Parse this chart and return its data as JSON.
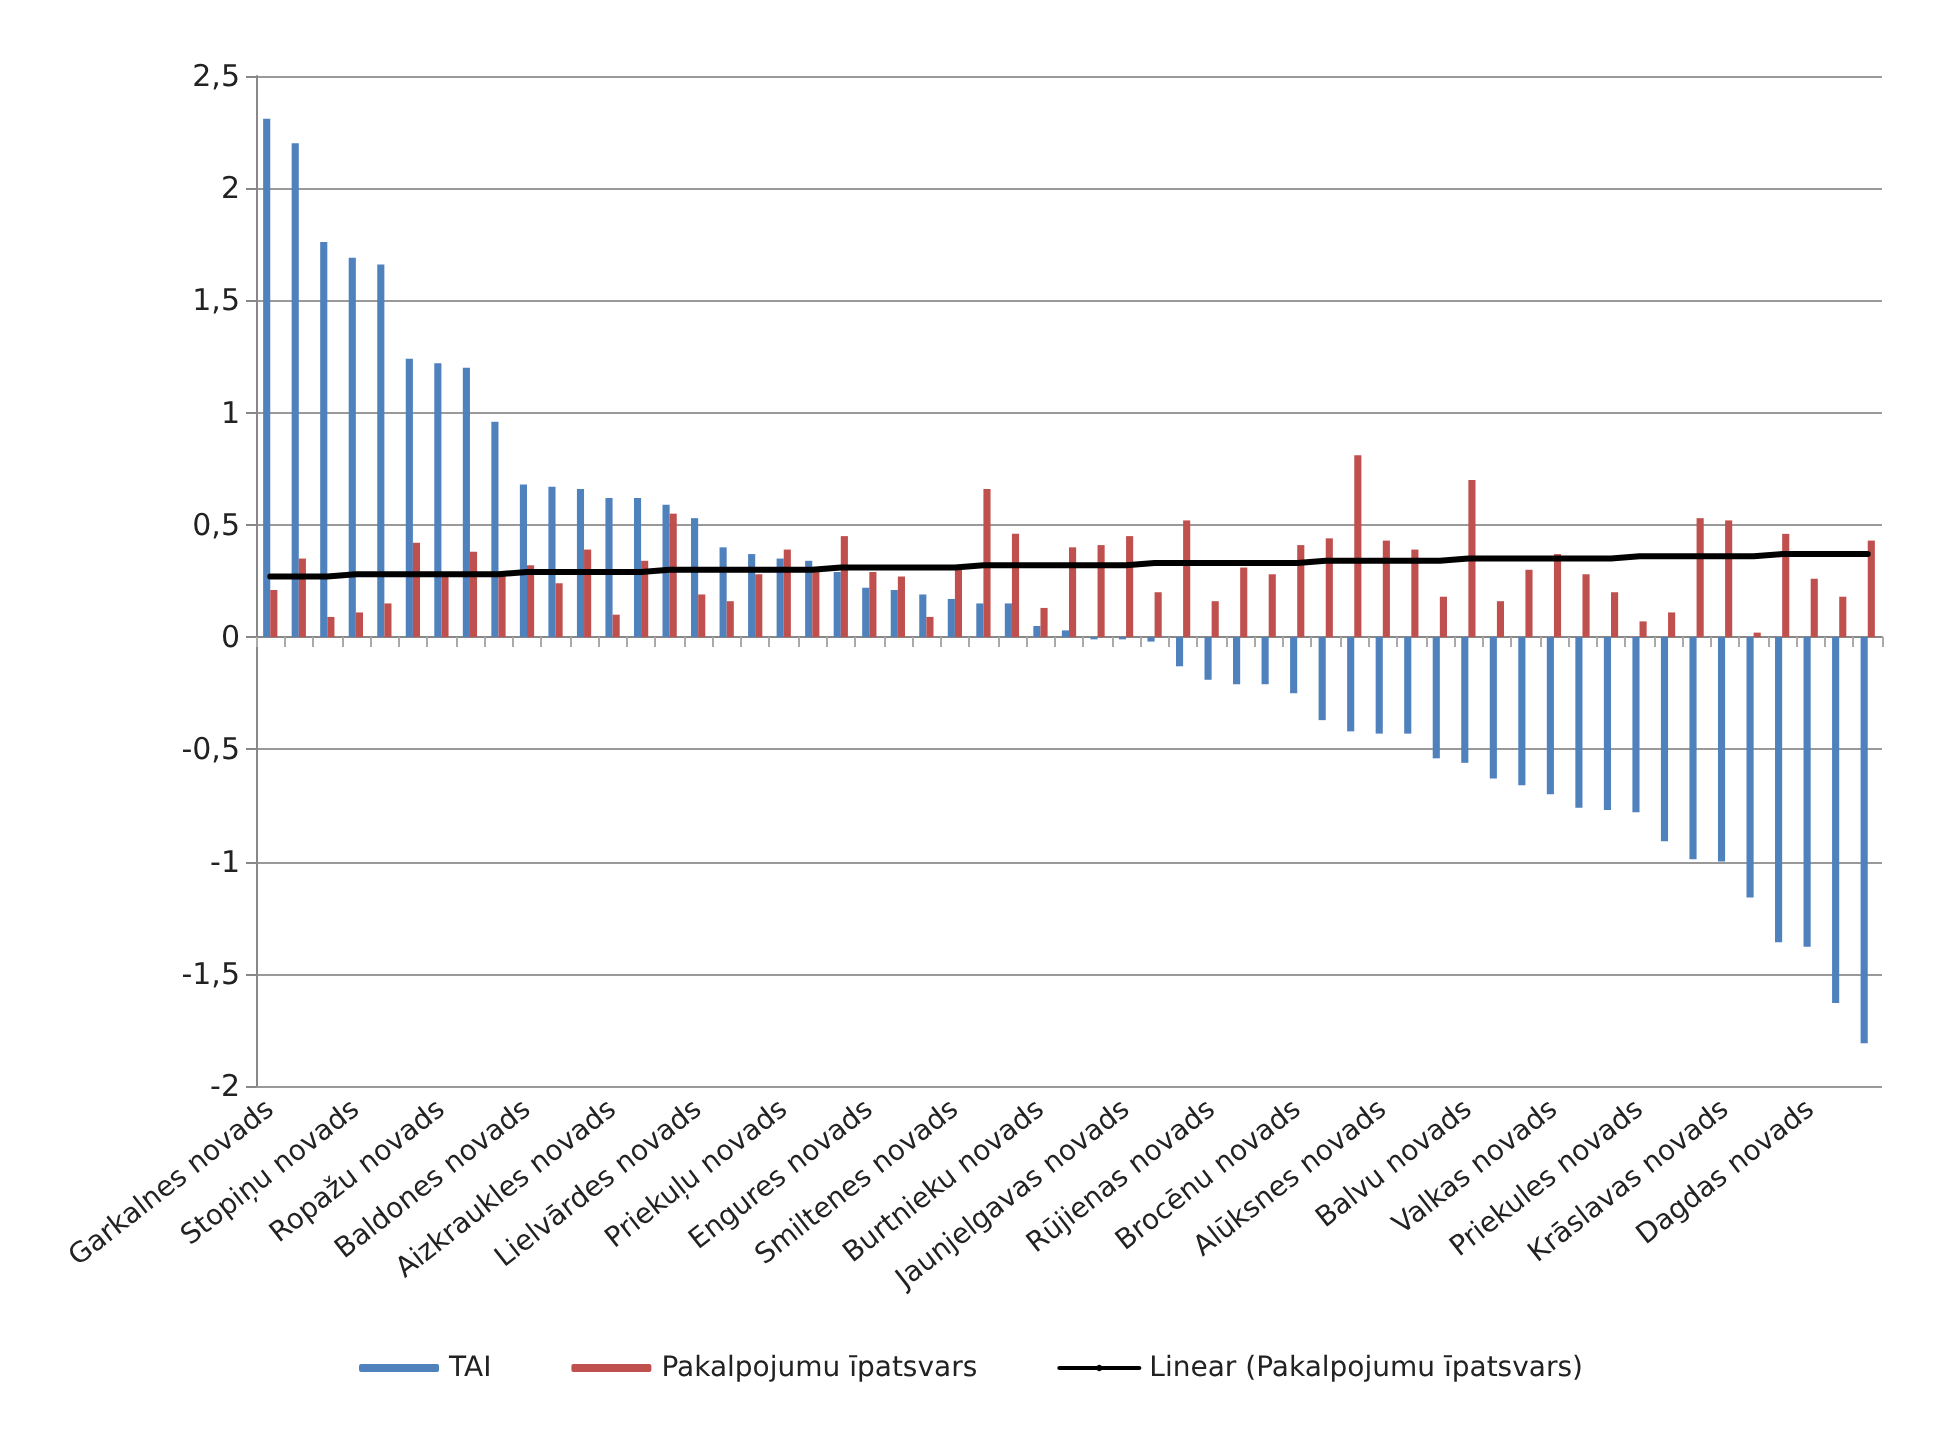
{
  "chart_data": {
    "type": "bar",
    "categories": [
      "Garkalnes novads",
      null,
      null,
      "Stopiņu novads",
      null,
      null,
      "Ropažu novads",
      null,
      null,
      "Baldones novads",
      null,
      null,
      "Aizkraukles novads",
      null,
      null,
      "Lielvārdes novads",
      null,
      null,
      "Priekuļu novads",
      null,
      null,
      "Engures novads",
      null,
      null,
      "Smiltenes novads",
      null,
      null,
      "Burtnieku novads",
      null,
      null,
      "Jaunjelgavas novads",
      null,
      null,
      "Rūjienas novads",
      null,
      null,
      "Brocēnu novads",
      null,
      null,
      "Alūksnes novads",
      null,
      null,
      "Balvu novads",
      null,
      null,
      "Valkas novads",
      null,
      null,
      "Priekules novads",
      null,
      null,
      "Krāslavas novads",
      null,
      null,
      "Dagdas novads",
      null,
      null
    ],
    "series": [
      {
        "name": "TAI",
        "color": "#4f81bd",
        "values": [
          2.31,
          2.2,
          1.76,
          1.69,
          1.66,
          1.24,
          1.22,
          1.2,
          0.96,
          0.68,
          0.67,
          0.66,
          0.62,
          0.62,
          0.59,
          0.53,
          0.4,
          0.37,
          0.35,
          0.34,
          0.29,
          0.22,
          0.21,
          0.19,
          0.17,
          0.15,
          0.15,
          0.05,
          0.03,
          -0.01,
          -0.01,
          -0.02,
          -0.13,
          -0.19,
          -0.21,
          -0.21,
          -0.25,
          -0.37,
          -0.42,
          -0.43,
          -0.43,
          -0.54,
          -0.56,
          -0.63,
          -0.66,
          -0.7,
          -0.76,
          -0.77,
          -0.78,
          -0.91,
          -0.99,
          -1.0,
          -1.16,
          -1.36,
          -1.38,
          -1.63,
          -1.81
        ]
      },
      {
        "name": "Pakalpojumu īpatsvars",
        "color": "#c0504d",
        "values": [
          0.21,
          0.35,
          0.09,
          0.11,
          0.15,
          0.42,
          0.29,
          0.38,
          0.29,
          0.32,
          0.24,
          0.39,
          0.1,
          0.34,
          0.55,
          0.19,
          0.16,
          0.28,
          0.39,
          0.3,
          0.45,
          0.29,
          0.27,
          0.09,
          0.32,
          0.66,
          0.46,
          0.13,
          0.4,
          0.41,
          0.45,
          0.2,
          0.52,
          0.16,
          0.31,
          0.28,
          0.41,
          0.44,
          0.81,
          0.43,
          0.39,
          0.18,
          0.7,
          0.16,
          0.3,
          0.37,
          0.28,
          0.2,
          0.07,
          0.11,
          0.53,
          0.52,
          0.02,
          0.46,
          0.26,
          0.18,
          0.43
        ]
      },
      {
        "name": "Linear (Pakalpojumu īpatsvars)",
        "type": "line",
        "color": "#000000",
        "marker": "none",
        "values": [
          0.27,
          0.27,
          0.27,
          0.28,
          0.28,
          0.28,
          0.28,
          0.28,
          0.28,
          0.29,
          0.29,
          0.29,
          0.29,
          0.29,
          0.3,
          0.3,
          0.3,
          0.3,
          0.3,
          0.3,
          0.31,
          0.31,
          0.31,
          0.31,
          0.31,
          0.32,
          0.32,
          0.32,
          0.32,
          0.32,
          0.32,
          0.33,
          0.33,
          0.33,
          0.33,
          0.33,
          0.33,
          0.34,
          0.34,
          0.34,
          0.34,
          0.34,
          0.35,
          0.35,
          0.35,
          0.35,
          0.35,
          0.35,
          0.36,
          0.36,
          0.36,
          0.36,
          0.36,
          0.37,
          0.37,
          0.37,
          0.37
        ]
      }
    ],
    "ylim": [
      -2,
      2.5
    ],
    "yticks": [
      {
        "value": -2,
        "label": "-2"
      },
      {
        "value": -1.5,
        "label": "-1,5"
      },
      {
        "value": -1,
        "label": "-1"
      },
      {
        "value": -0.5,
        "label": "-0,5"
      },
      {
        "value": 0,
        "label": "0"
      },
      {
        "value": 0.5,
        "label": "0,5"
      },
      {
        "value": 1,
        "label": "1"
      },
      {
        "value": 1.5,
        "label": "1,5"
      },
      {
        "value": 2,
        "label": "2"
      },
      {
        "value": 2.5,
        "label": "2,5"
      }
    ],
    "grid": "y",
    "legend": "bottom"
  }
}
